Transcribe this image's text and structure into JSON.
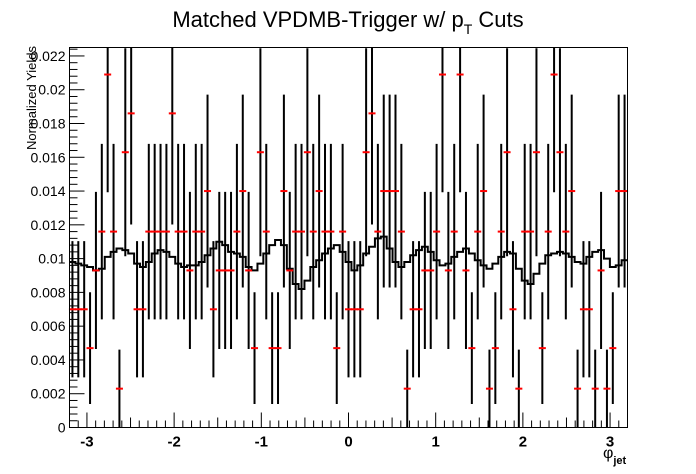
{
  "chart_data": {
    "type": "scatter",
    "title_main": "Matched VPDMB-Trigger w/ p",
    "title_sub": "T",
    "title_tail": " Cuts",
    "ylabel": "Normalized Yields",
    "xlabel_main": "φ",
    "xlabel_sub": "jet",
    "xlim": [
      -3.2,
      3.2
    ],
    "ylim": [
      0,
      0.0225
    ],
    "x_ticks": [
      -3,
      -2,
      -1,
      0,
      1,
      2,
      3
    ],
    "x_tick_labels": [
      "-3",
      "-2",
      "-1",
      "0",
      "1",
      "2",
      "3"
    ],
    "y_ticks": [
      0,
      0.002,
      0.004,
      0.006,
      0.008,
      0.01,
      0.012,
      0.014,
      0.016,
      0.018,
      0.02,
      0.022
    ],
    "y_tick_labels": [
      "0",
      "0.002",
      "0.004",
      "0.006",
      "0.008",
      "0.01",
      "0.012",
      "0.014",
      "0.016",
      "0.018",
      "0.02",
      "0.022"
    ],
    "series": [
      {
        "kind": "points_with_errors",
        "color": "#ff0000",
        "errorbar_color": "#000000",
        "y": [
          0.007,
          0.007,
          0.007,
          0.0047,
          0.0093,
          0.0116,
          0.0209,
          0.0116,
          0.0023,
          0.0163,
          0.0186,
          0.007,
          0.007,
          0.0116,
          0.0116,
          0.0116,
          0.0116,
          0.0186,
          0.0116,
          0.0116,
          0.0093,
          0.0116,
          0.0116,
          0.014,
          0.007,
          0.0093,
          0.0093,
          0.0093,
          0.0116,
          0.014,
          0.0093,
          0.0047,
          0.0163,
          0.0116,
          0.0047,
          0.0047,
          0.014,
          0.0093,
          0.0116,
          0.0116,
          0.0163,
          0.0116,
          0.014,
          0.0116,
          0.0116,
          0.0047,
          0.0116,
          0.007,
          0.007,
          0.007,
          0.0163,
          0.0186,
          0.0116,
          0.014,
          0.014,
          0.014,
          0.0116,
          0.0023,
          0.007,
          0.007,
          0.0093,
          0.0093,
          0.0116,
          0.0209,
          0.0093,
          0.0116,
          0.0209,
          0.0093,
          0.0047,
          0.0116,
          0.014,
          0.0023,
          0.0047,
          0.0116,
          0.0163,
          0.007,
          0.0023,
          0.0116,
          0.0116,
          0.0163,
          0.0047,
          0.0116,
          0.0209,
          0.0163,
          0.0116,
          0.014,
          0.0023,
          0.007,
          0.007,
          0.0023,
          0.0093,
          0.0023,
          0.0047,
          0.014,
          0.014
        ]
      },
      {
        "kind": "histogram_step",
        "color": "#000000",
        "y": [
          0.0098,
          0.0097,
          0.0096,
          0.0095,
          0.0093,
          0.0094,
          0.0101,
          0.0104,
          0.0106,
          0.0105,
          0.0103,
          0.0097,
          0.0095,
          0.0098,
          0.0103,
          0.0105,
          0.0104,
          0.0101,
          0.0097,
          0.0095,
          0.0096,
          0.0096,
          0.0098,
          0.0102,
          0.0106,
          0.011,
          0.0108,
          0.0104,
          0.0103,
          0.0101,
          0.0095,
          0.0093,
          0.0097,
          0.0103,
          0.0108,
          0.0111,
          0.0108,
          0.0094,
          0.0085,
          0.0082,
          0.0087,
          0.0095,
          0.0099,
          0.0103,
          0.0106,
          0.0108,
          0.0104,
          0.0098,
          0.0093,
          0.0096,
          0.0103,
          0.0107,
          0.0112,
          0.0113,
          0.0106,
          0.0098,
          0.0095,
          0.0098,
          0.0102,
          0.0105,
          0.0107,
          0.0104,
          0.0099,
          0.0096,
          0.0097,
          0.0101,
          0.0104,
          0.0106,
          0.0103,
          0.0099,
          0.0096,
          0.0094,
          0.0097,
          0.0101,
          0.0104,
          0.0103,
          0.0094,
          0.0087,
          0.0085,
          0.0091,
          0.0097,
          0.0102,
          0.0103,
          0.0104,
          0.0103,
          0.0101,
          0.0098,
          0.0097,
          0.0101,
          0.0104,
          0.0105,
          0.01,
          0.0095,
          0.0096,
          0.0099
        ]
      }
    ],
    "grid": false,
    "legend": "none"
  }
}
